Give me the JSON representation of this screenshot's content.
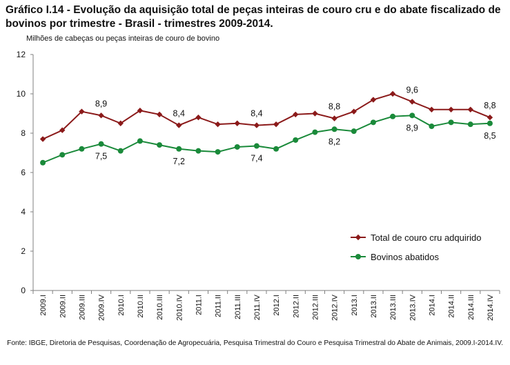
{
  "title": "Gráfico I.14 - Evolução da aquisição total de peças inteiras de couro cru e do abate fiscalizado de bovinos por trimestre - Brasil - trimestres 2009-2014.",
  "source": "Fonte: IBGE, Diretoria de Pesquisas, Coordenação de Agropecuária, Pesquisa Trimestral do Couro e Pesquisa Trimestral do Abate de Animais, 2009.I-2014.IV.",
  "chart_data": {
    "type": "line",
    "title": "Gráfico I.14 - Evolução da aquisição total de peças inteiras de couro cru e do abate fiscalizado de bovinos por trimestre - Brasil - trimestres 2009-2014.",
    "ylabel": "Milhões de cabeças ou peças inteiras de couro de bovino",
    "xlabel": "",
    "ylim": [
      0,
      12
    ],
    "yticks": [
      0,
      2,
      4,
      6,
      8,
      10,
      12
    ],
    "grid": false,
    "legend_position": "bottom-right",
    "categories": [
      "2009.I",
      "2009.II",
      "2009.III",
      "2009.IV",
      "2010.I",
      "2010.II",
      "2010.III",
      "2010.IV",
      "2011.I",
      "2011.II",
      "2011.III",
      "2011.IV",
      "2012.I",
      "2012.II",
      "2012.III",
      "2012.IV",
      "2013.I",
      "2013.II",
      "2013.III",
      "2013.IV",
      "2014.I",
      "2014.II",
      "2014.III",
      "2014.IV"
    ],
    "series": [
      {
        "name": "Total de couro cru adquirido",
        "color": "#8b1a1a",
        "marker": "diamond",
        "values": [
          7.7,
          8.15,
          9.1,
          8.9,
          8.5,
          9.15,
          8.95,
          8.4,
          8.8,
          8.45,
          8.5,
          8.4,
          8.45,
          8.95,
          9.0,
          8.75,
          9.1,
          9.7,
          10.0,
          9.6,
          9.2,
          9.2,
          9.2,
          8.8
        ],
        "data_labels": [
          {
            "index": 3,
            "text": "8,9",
            "pos": "above"
          },
          {
            "index": 7,
            "text": "8,4",
            "pos": "above"
          },
          {
            "index": 11,
            "text": "8,4",
            "pos": "above"
          },
          {
            "index": 15,
            "text": "8,8",
            "pos": "above"
          },
          {
            "index": 19,
            "text": "9,6",
            "pos": "above"
          },
          {
            "index": 23,
            "text": "8,8",
            "pos": "above"
          }
        ]
      },
      {
        "name": "Bovinos abatidos",
        "color": "#1a8a3a",
        "marker": "circle",
        "values": [
          6.5,
          6.9,
          7.2,
          7.45,
          7.1,
          7.6,
          7.4,
          7.2,
          7.1,
          7.05,
          7.3,
          7.35,
          7.2,
          7.65,
          8.05,
          8.2,
          8.1,
          8.55,
          8.85,
          8.9,
          8.35,
          8.55,
          8.45,
          8.5
        ],
        "data_labels": [
          {
            "index": 3,
            "text": "7,5",
            "pos": "below"
          },
          {
            "index": 7,
            "text": "7,2",
            "pos": "below"
          },
          {
            "index": 11,
            "text": "7,4",
            "pos": "below"
          },
          {
            "index": 15,
            "text": "8,2",
            "pos": "below"
          },
          {
            "index": 19,
            "text": "8,9",
            "pos": "below"
          },
          {
            "index": 23,
            "text": "8,5",
            "pos": "below"
          }
        ]
      }
    ]
  }
}
